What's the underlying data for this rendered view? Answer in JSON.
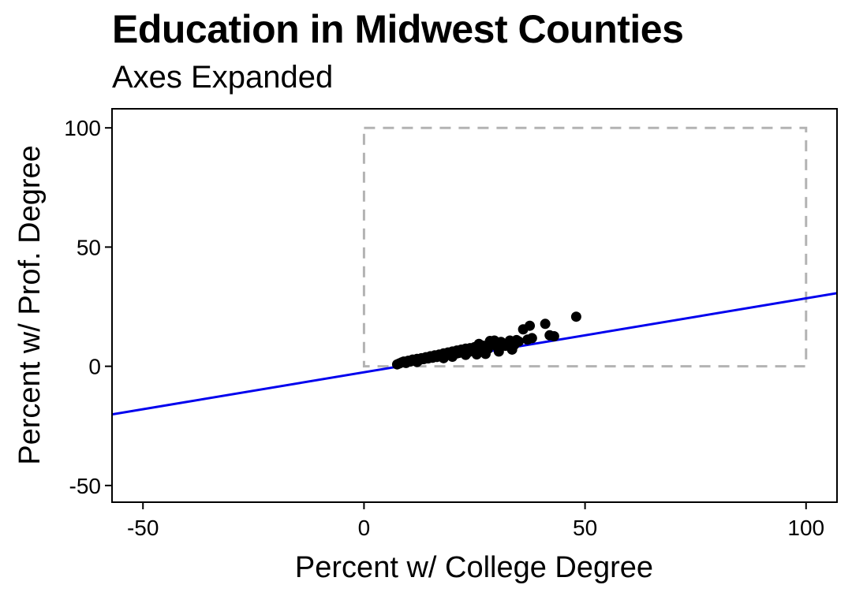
{
  "chart_data": {
    "type": "scatter",
    "title": "Education in Midwest Counties",
    "subtitle": "Axes Expanded",
    "xlabel": "Percent w/ College Degree",
    "ylabel": "Percent w/ Prof. Degree",
    "xlim": [
      -57,
      107
    ],
    "ylim": [
      -57,
      108
    ],
    "x_ticks": [
      -50,
      0,
      50,
      100
    ],
    "y_ticks": [
      -50,
      0,
      50,
      100
    ],
    "x_tick_labels": [
      "-50",
      "0",
      "50",
      "100"
    ],
    "y_tick_labels": [
      "-50",
      "0",
      "50",
      "100"
    ],
    "grid": false,
    "colors": {
      "points": "#000000",
      "fit_line": "#0000ee",
      "data_range_box": "#b3b3b3"
    },
    "data_range_box": {
      "x": [
        0,
        100
      ],
      "y": [
        0,
        100
      ],
      "style": "dashed"
    },
    "fit_line": {
      "slope": 0.31,
      "intercept": -2.5
    },
    "series": [
      {
        "points": [
          [
            7.5,
            0.8
          ],
          [
            8.0,
            1.2
          ],
          [
            8.5,
            1.6
          ],
          [
            9.0,
            2.0
          ],
          [
            9.5,
            1.4
          ],
          [
            10.0,
            2.3
          ],
          [
            10.5,
            2.0
          ],
          [
            11.0,
            2.8
          ],
          [
            11.5,
            2.4
          ],
          [
            12.0,
            3.1
          ],
          [
            12.5,
            2.6
          ],
          [
            13.0,
            3.4
          ],
          [
            13.5,
            3.0
          ],
          [
            14.0,
            3.8
          ],
          [
            14.5,
            3.3
          ],
          [
            15.0,
            4.2
          ],
          [
            15.5,
            3.6
          ],
          [
            16.0,
            4.6
          ],
          [
            16.5,
            3.9
          ],
          [
            17.0,
            4.9
          ],
          [
            17.5,
            4.3
          ],
          [
            18.0,
            5.4
          ],
          [
            18.5,
            4.6
          ],
          [
            19.0,
            5.8
          ],
          [
            19.5,
            4.9
          ],
          [
            20.0,
            6.2
          ],
          [
            20.5,
            5.3
          ],
          [
            21.0,
            6.6
          ],
          [
            21.5,
            5.6
          ],
          [
            22.0,
            7.0
          ],
          [
            22.5,
            6.0
          ],
          [
            23.0,
            7.4
          ],
          [
            23.5,
            5.8
          ],
          [
            24.0,
            7.6
          ],
          [
            24.5,
            6.4
          ],
          [
            25.0,
            8.0
          ],
          [
            25.5,
            5.0
          ],
          [
            26.0,
            8.3
          ],
          [
            26.5,
            6.8
          ],
          [
            27.0,
            8.6
          ],
          [
            28.0,
            7.2
          ],
          [
            29.0,
            9.6
          ],
          [
            29.5,
            10.8
          ],
          [
            30.0,
            8.4
          ],
          [
            31.0,
            10.2
          ],
          [
            32.0,
            8.6
          ],
          [
            33.0,
            10.8
          ],
          [
            34.0,
            9.0
          ],
          [
            34.5,
            11.0
          ],
          [
            35.0,
            10.4
          ],
          [
            36.0,
            15.5
          ],
          [
            37.0,
            11.2
          ],
          [
            37.5,
            17.0
          ],
          [
            38.0,
            11.8
          ],
          [
            41.0,
            17.8
          ],
          [
            42.0,
            13.0
          ],
          [
            43.0,
            12.6
          ],
          [
            48.0,
            20.8
          ],
          [
            21.0,
            5.4
          ],
          [
            23.0,
            4.8
          ],
          [
            27.5,
            5.2
          ],
          [
            30.5,
            6.2
          ],
          [
            33.5,
            7.0
          ],
          [
            18.0,
            3.4
          ],
          [
            20.0,
            4.0
          ],
          [
            12.0,
            1.8
          ],
          [
            26.0,
            9.4
          ],
          [
            28.5,
            10.6
          ]
        ]
      }
    ]
  }
}
